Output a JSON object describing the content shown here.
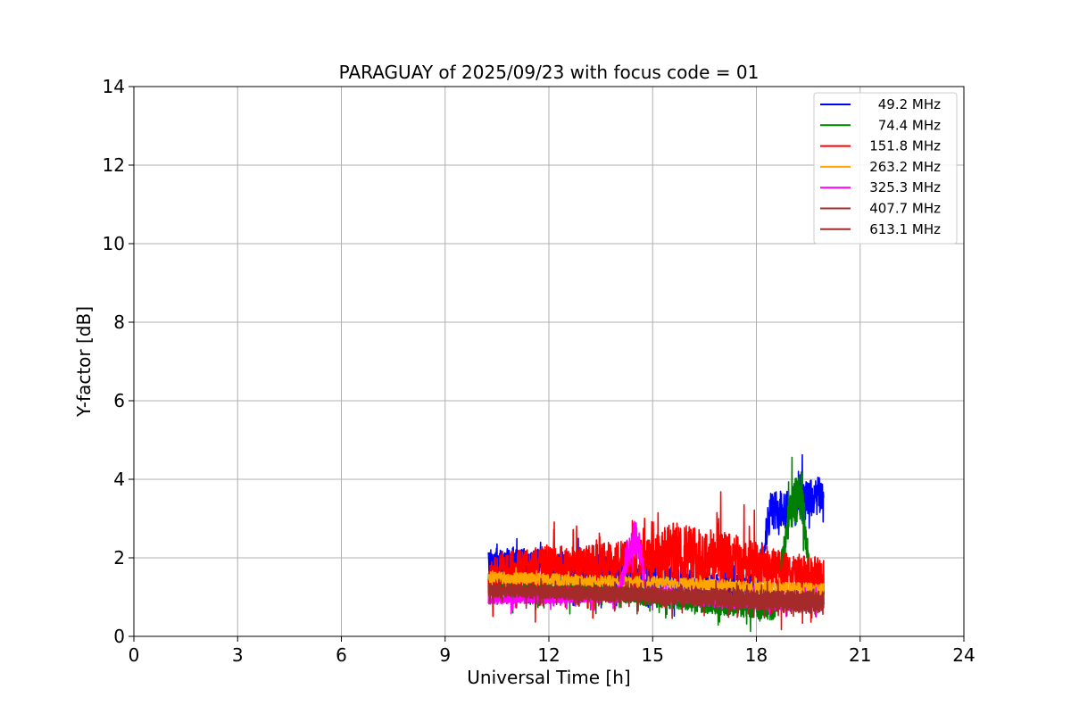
{
  "chart_data": {
    "type": "line",
    "title": "PARAGUAY of 2025/09/23 with focus code = 01",
    "xlabel": "Universal Time [h]",
    "ylabel": "Y-factor [dB]",
    "xlim": [
      0,
      24
    ],
    "ylim": [
      0,
      14
    ],
    "xticks": [
      0,
      3,
      6,
      9,
      12,
      15,
      18,
      21,
      24
    ],
    "yticks": [
      0,
      2,
      4,
      6,
      8,
      10,
      12,
      14
    ],
    "grid": true,
    "legend_position": "top-right",
    "x_start": 10.25,
    "x_end": 19.95,
    "series": [
      {
        "name": " 49.2 MHz",
        "color": "#0000ff",
        "x": [
          10.25,
          11,
          12,
          13,
          14,
          15,
          16,
          17,
          18,
          18.4,
          18.8,
          19.2,
          19.6,
          19.95
        ],
        "base": [
          1.8,
          1.8,
          1.8,
          1.8,
          1.6,
          1.5,
          1.4,
          1.3,
          1.3,
          3.2,
          3.3,
          3.4,
          3.5,
          3.6
        ],
        "amp": [
          0.45,
          0.45,
          0.4,
          0.4,
          0.35,
          0.35,
          0.3,
          0.3,
          0.3,
          0.5,
          0.5,
          0.5,
          0.5,
          0.5
        ],
        "dip": 0.7
      },
      {
        "name": " 74.4 MHz",
        "color": "#008000",
        "x": [
          10.25,
          11,
          12,
          13,
          14,
          15,
          16,
          17,
          18,
          18.5,
          19,
          19.3,
          19.6,
          19.95
        ],
        "base": [
          1.4,
          1.3,
          1.2,
          1.2,
          1.1,
          1.0,
          0.9,
          0.8,
          0.7,
          0.6,
          3.3,
          3.6,
          1.0,
          1.0
        ],
        "amp": [
          0.25,
          0.25,
          0.25,
          0.25,
          0.25,
          0.25,
          0.25,
          0.25,
          0.25,
          0.2,
          0.6,
          0.7,
          0.3,
          0.3
        ],
        "dip": 0.5
      },
      {
        "name": " 151.8 MHz",
        "color": "#ff0000",
        "x": [
          10.25,
          11,
          12,
          13,
          14,
          15,
          15.5,
          16,
          17,
          18,
          19,
          19.95
        ],
        "base": [
          1.5,
          1.7,
          1.8,
          1.8,
          1.9,
          1.9,
          2.1,
          2.1,
          2.0,
          1.8,
          1.6,
          1.5
        ],
        "amp": [
          0.5,
          0.5,
          0.5,
          0.5,
          0.55,
          0.6,
          0.8,
          0.8,
          0.7,
          0.6,
          0.5,
          0.5
        ],
        "dip": 1.0
      },
      {
        "name": " 263.2 MHz",
        "color": "#ffa500",
        "x": [
          10.25,
          12,
          14,
          16,
          18,
          19.95
        ],
        "base": [
          1.5,
          1.45,
          1.4,
          1.35,
          1.25,
          1.2
        ],
        "amp": [
          0.15,
          0.15,
          0.15,
          0.15,
          0.15,
          0.15
        ],
        "dip": 0.1
      },
      {
        "name": " 325.3 MHz",
        "color": "#ff00ff",
        "x": [
          10.25,
          12,
          14,
          14.3,
          14.6,
          14.8,
          16,
          17,
          18,
          19,
          19.95
        ],
        "base": [
          0.95,
          0.95,
          1.0,
          2.2,
          2.5,
          1.1,
          1.0,
          0.9,
          0.9,
          0.85,
          0.85
        ],
        "amp": [
          0.12,
          0.12,
          0.15,
          0.5,
          0.6,
          0.15,
          0.15,
          0.2,
          0.2,
          0.2,
          0.2
        ],
        "dip": 0.3
      },
      {
        "name": " 407.7 MHz",
        "color": "#a52a2a",
        "x": [
          10.25,
          12,
          14,
          16,
          18,
          19.95
        ],
        "base": [
          1.2,
          1.15,
          1.1,
          1.05,
          0.95,
          0.9
        ],
        "amp": [
          0.15,
          0.15,
          0.2,
          0.2,
          0.25,
          0.25
        ],
        "dip": 0.3
      },
      {
        "name": " 613.1 MHz",
        "color": "#a52a2a",
        "x": [
          10.25,
          12,
          14,
          16,
          18,
          19.95
        ],
        "base": [
          1.15,
          1.1,
          1.05,
          1.0,
          0.9,
          0.85
        ],
        "amp": [
          0.15,
          0.15,
          0.2,
          0.2,
          0.25,
          0.3
        ],
        "dip": 0.4
      }
    ]
  }
}
